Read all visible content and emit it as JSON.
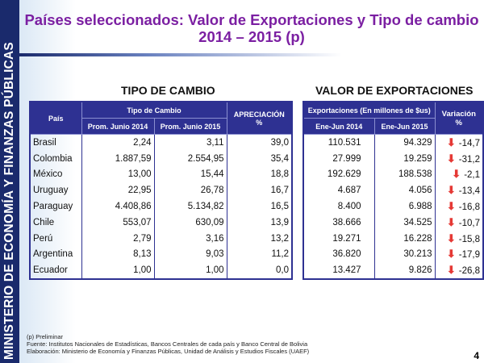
{
  "sidebar": {
    "text": "MINISTERIO DE ECONOMÍA Y FINANZAS PÚBLICAS"
  },
  "title": {
    "line1": "Países seleccionados: Valor de Exportaciones y Tipo de cambio",
    "line2": "2014 – 2015 (p)"
  },
  "tipo_cambio": {
    "heading": "TIPO DE CAMBIO",
    "col_pais": "País",
    "col_group": "Tipo de Cambio",
    "col_2014": "Prom. Junio 2014",
    "col_2015": "Prom. Junio 2015",
    "col_apreciacion": "APRECIACIÓN",
    "col_apreciacion_unit": "%",
    "rows": [
      {
        "pais": "Brasil",
        "y2014": "2,24",
        "y2015": "3,11",
        "apreciacion": "39,0"
      },
      {
        "pais": "Colombia",
        "y2014": "1.887,59",
        "y2015": "2.554,95",
        "apreciacion": "35,4"
      },
      {
        "pais": "México",
        "y2014": "13,00",
        "y2015": "15,44",
        "apreciacion": "18,8"
      },
      {
        "pais": "Uruguay",
        "y2014": "22,95",
        "y2015": "26,78",
        "apreciacion": "16,7"
      },
      {
        "pais": "Paraguay",
        "y2014": "4.408,86",
        "y2015": "5.134,82",
        "apreciacion": "16,5"
      },
      {
        "pais": "Chile",
        "y2014": "553,07",
        "y2015": "630,09",
        "apreciacion": "13,9"
      },
      {
        "pais": "Perú",
        "y2014": "2,79",
        "y2015": "3,16",
        "apreciacion": "13,2"
      },
      {
        "pais": "Argentina",
        "y2014": "8,13",
        "y2015": "9,03",
        "apreciacion": "11,2"
      },
      {
        "pais": "Ecuador",
        "y2014": "1,00",
        "y2015": "1,00",
        "apreciacion": "0,0"
      }
    ]
  },
  "exportaciones": {
    "heading": "VALOR DE EXPORTACIONES",
    "col_group": "Exportaciones (En millones de $us)",
    "col_2014": "Ene-Jun 2014",
    "col_2015": "Ene-Jun 2015",
    "col_variacion": "Variación",
    "col_variacion_unit": "%",
    "arrow_color": "#e53935",
    "rows": [
      {
        "y2014": "110.531",
        "y2015": "94.329",
        "variacion": "-14,7"
      },
      {
        "y2014": "27.999",
        "y2015": "19.259",
        "variacion": "-31,2"
      },
      {
        "y2014": "192.629",
        "y2015": "188.538",
        "variacion": "-2,1"
      },
      {
        "y2014": "4.687",
        "y2015": "4.056",
        "variacion": "-13,4"
      },
      {
        "y2014": "8.400",
        "y2015": "6.988",
        "variacion": "-16,8"
      },
      {
        "y2014": "38.666",
        "y2015": "34.525",
        "variacion": "-10,7"
      },
      {
        "y2014": "19.271",
        "y2015": "16.228",
        "variacion": "-15,8"
      },
      {
        "y2014": "36.820",
        "y2015": "30.213",
        "variacion": "-17,9"
      },
      {
        "y2014": "13.427",
        "y2015": "9.826",
        "variacion": "-26,8"
      }
    ]
  },
  "footer": {
    "note": "(p) Preliminar",
    "source": "Fuente: Institutos Nacionales de Estadísticas, Bancos Centrales de cada país y Banco Central de Bolivia",
    "elaboration": "Elaboración: Ministerio de Economía y Finanzas Públicas, Unidad de Análisis y Estudios Fiscales (UAEF)",
    "page": "4"
  }
}
